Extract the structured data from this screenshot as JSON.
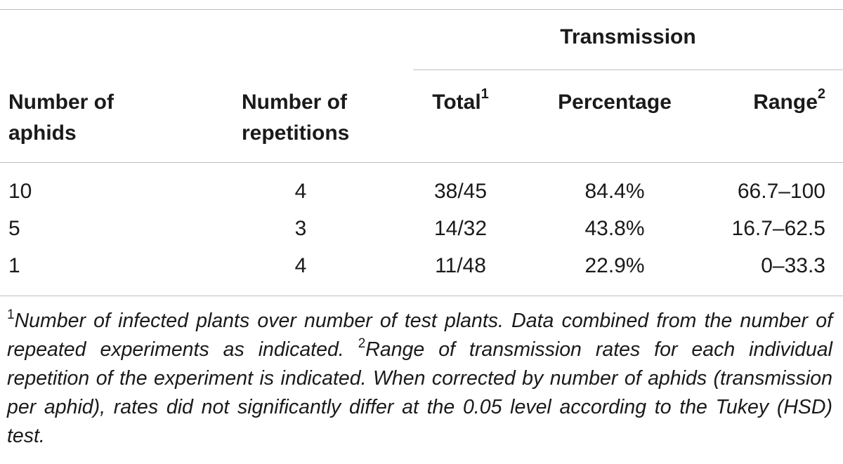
{
  "table": {
    "group_header": "Transmission",
    "columns": {
      "aphids": [
        "Number of",
        "aphids"
      ],
      "repetitions": [
        "Number of",
        "repetitions"
      ],
      "total": "Total",
      "total_note": "1",
      "percentage": "Percentage",
      "range": "Range",
      "range_note": "2"
    },
    "rows": [
      {
        "aphids": "10",
        "repetitions": "4",
        "total": "38/45",
        "percentage": "84.4%",
        "range": "66.7–100"
      },
      {
        "aphids": "5",
        "repetitions": "3",
        "total": "14/32",
        "percentage": "43.8%",
        "range": "16.7–62.5"
      },
      {
        "aphids": "1",
        "repetitions": "4",
        "total": "11/48",
        "percentage": "22.9%",
        "range": "0–33.3"
      }
    ]
  },
  "footnote": {
    "mark1": "1",
    "text1": "Number of infected plants over number of test plants. Data combined from the number of repeated experiments as indicated. ",
    "mark2": "2",
    "text2": "Range of transmission rates for each individual repetition of the experiment is indicated. When corrected by number of aphids (transmission per aphid), rates did not significantly differ at the 0.05 level according to the Tukey (HSD) test."
  }
}
